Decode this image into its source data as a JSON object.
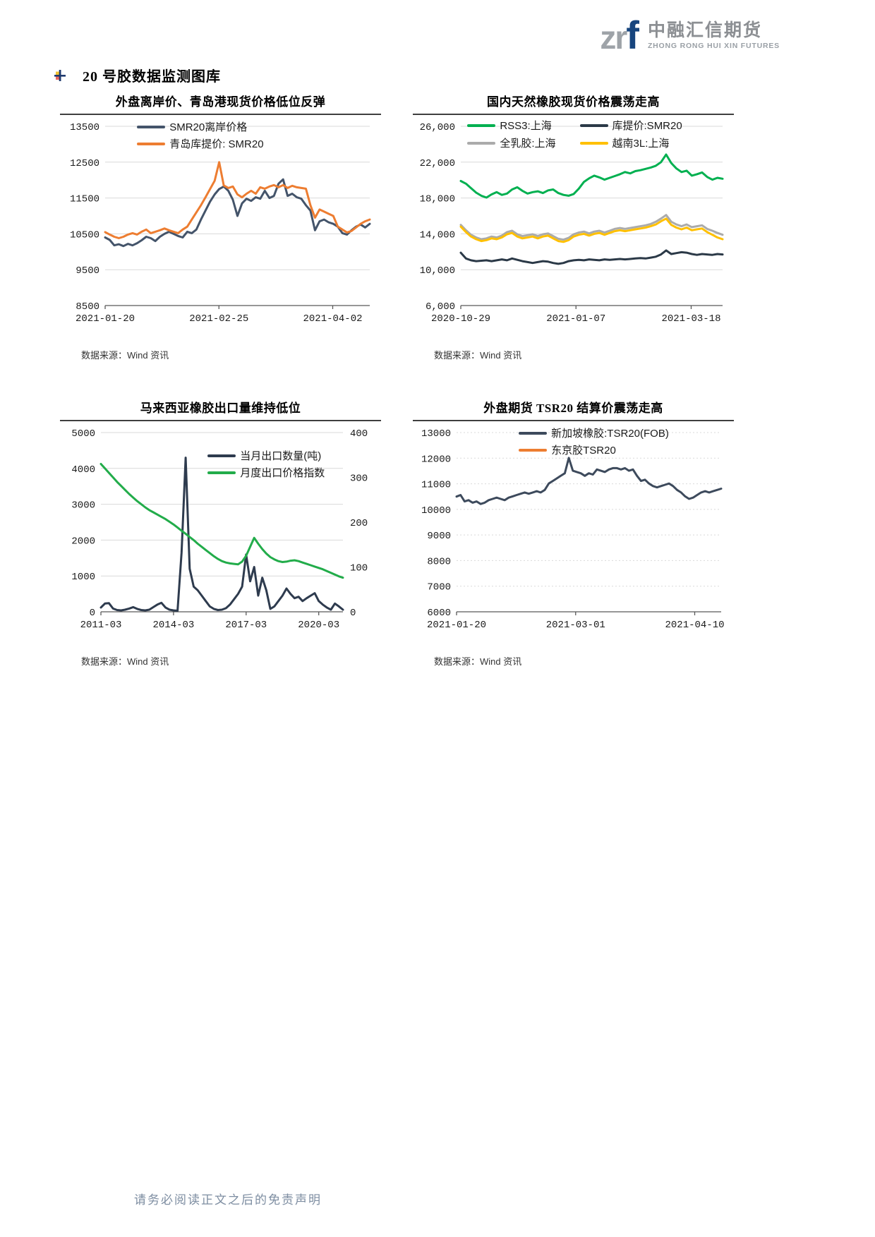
{
  "header": {
    "logo": {
      "zr": "zr",
      "f": "f",
      "cn": "中融汇信期货",
      "en": "ZHONG RONG HUI XIN FUTURES"
    },
    "section_title": "20 号胶数据监测图库"
  },
  "footer": {
    "disclaimer": "请务必阅读正文之后的免责声明"
  },
  "chart_data": [
    {
      "type": "line",
      "title": "外盘离岸价、青岛港现货价格低位反弹",
      "source": "数据来源：Wind 资讯",
      "ylim": [
        8500,
        13500
      ],
      "yticks": [
        8500,
        9500,
        10500,
        11500,
        12500,
        13500
      ],
      "ytick_labels": [
        "8500",
        "9500",
        "10500",
        "11500",
        "12500",
        "13500"
      ],
      "xticks": [
        {
          "label": "2021-01-20",
          "pos": 0.0
        },
        {
          "label": "2021-02-25",
          "pos": 0.43
        },
        {
          "label": "2021-04-02",
          "pos": 0.86
        }
      ],
      "grid": "solid",
      "ml": 64,
      "mr": 16,
      "series": [
        {
          "name": "SMR20离岸价格",
          "color": "#44546a",
          "width": 3,
          "values": [
            10400,
            10330,
            10180,
            10210,
            10160,
            10220,
            10180,
            10240,
            10320,
            10420,
            10380,
            10300,
            10420,
            10500,
            10560,
            10500,
            10440,
            10400,
            10560,
            10520,
            10620,
            10900,
            11150,
            11400,
            11600,
            11750,
            11820,
            11700,
            11450,
            11000,
            11350,
            11480,
            11420,
            11520,
            11480,
            11700,
            11500,
            11560,
            11900,
            12020,
            11560,
            11620,
            11520,
            11480,
            11300,
            11150,
            10600,
            10850,
            10900,
            10820,
            10780,
            10700,
            10520,
            10480,
            10600,
            10700,
            10760,
            10680,
            10780
          ]
        },
        {
          "name": "青岛库提价: SMR20",
          "color": "#ed7d31",
          "width": 3,
          "values": [
            10550,
            10480,
            10420,
            10380,
            10420,
            10480,
            10520,
            10480,
            10560,
            10620,
            10520,
            10560,
            10600,
            10650,
            10600,
            10560,
            10520,
            10620,
            10700,
            10900,
            11100,
            11300,
            11520,
            11750,
            11980,
            12500,
            11850,
            11780,
            11820,
            11600,
            11520,
            11620,
            11700,
            11620,
            11800,
            11760,
            11820,
            11860,
            11800,
            11860,
            11780,
            11840,
            11800,
            11780,
            11760,
            11300,
            10950,
            11180,
            11120,
            11060,
            11000,
            10700,
            10620,
            10540,
            10580,
            10680,
            10780,
            10850,
            10900
          ]
        }
      ]
    },
    {
      "type": "line",
      "title": "国内天然橡胶现货价格震荡走高",
      "source": "数据来源：Wind 资讯",
      "ylim": [
        6000,
        26000
      ],
      "yticks": [
        6000,
        10000,
        14000,
        18000,
        22000,
        26000
      ],
      "ytick_labels": [
        "6,000",
        "10,000",
        "14,000",
        "18,000",
        "22,000",
        "26,000"
      ],
      "xticks": [
        {
          "label": "2020-10-29",
          "pos": 0.0
        },
        {
          "label": "2021-01-07",
          "pos": 0.44
        },
        {
          "label": "2021-03-18",
          "pos": 0.88
        }
      ],
      "grid": "solid",
      "ml": 68,
      "mr": 16,
      "series": [
        {
          "name": "RSS3:上海",
          "color": "#00b050",
          "width": 3,
          "values": [
            19900,
            19600,
            19100,
            18600,
            18250,
            18050,
            18400,
            18650,
            18350,
            18500,
            18950,
            19200,
            18800,
            18500,
            18650,
            18750,
            18550,
            18850,
            18950,
            18550,
            18350,
            18250,
            18450,
            19050,
            19800,
            20200,
            20500,
            20300,
            20050,
            20250,
            20450,
            20650,
            20900,
            20750,
            21000,
            21100,
            21250,
            21400,
            21600,
            22000,
            22850,
            21900,
            21300,
            20900,
            21050,
            20500,
            20650,
            20850,
            20350,
            20050,
            20250,
            20150
          ]
        },
        {
          "name": "库提价:SMR20",
          "color": "#2b3947",
          "width": 3,
          "values": [
            11900,
            11250,
            11050,
            10950,
            11000,
            11050,
            10950,
            11050,
            11150,
            11050,
            11250,
            11100,
            10950,
            10850,
            10750,
            10850,
            10950,
            10900,
            10750,
            10650,
            10750,
            10950,
            11050,
            11100,
            11050,
            11150,
            11100,
            11050,
            11150,
            11100,
            11150,
            11200,
            11150,
            11200,
            11250,
            11300,
            11250,
            11350,
            11450,
            11700,
            12150,
            11750,
            11850,
            11950,
            11900,
            11750,
            11650,
            11750,
            11700,
            11650,
            11750,
            11700
          ]
        },
        {
          "name": "全乳胶:上海",
          "color": "#ababab",
          "width": 3,
          "values": [
            15000,
            14400,
            13900,
            13600,
            13400,
            13500,
            13700,
            13600,
            13800,
            14200,
            14350,
            13950,
            13750,
            13850,
            13950,
            13750,
            13950,
            14050,
            13750,
            13450,
            13350,
            13550,
            13950,
            14150,
            14250,
            14050,
            14250,
            14350,
            14150,
            14350,
            14550,
            14650,
            14550,
            14650,
            14750,
            14850,
            14950,
            15100,
            15350,
            15700,
            16100,
            15350,
            15050,
            14850,
            15050,
            14750,
            14850,
            14950,
            14550,
            14350,
            14100,
            13900
          ]
        },
        {
          "name": "越南3L:上海",
          "color": "#ffc000",
          "width": 3,
          "values": [
            14800,
            14200,
            13700,
            13400,
            13200,
            13300,
            13500,
            13400,
            13600,
            13950,
            14100,
            13700,
            13500,
            13600,
            13700,
            13500,
            13700,
            13800,
            13500,
            13200,
            13100,
            13300,
            13700,
            13900,
            14000,
            13800,
            14000,
            14100,
            13900,
            14100,
            14300,
            14400,
            14300,
            14400,
            14500,
            14600,
            14700,
            14850,
            15050,
            15400,
            15700,
            15000,
            14700,
            14500,
            14700,
            14400,
            14500,
            14600,
            14200,
            13900,
            13600,
            13400
          ]
        }
      ]
    },
    {
      "type": "line",
      "title": "马来西亚橡胶出口量维持低位",
      "source": "数据来源：Wind 资讯",
      "ylim": [
        0,
        5000
      ],
      "yticks": [
        0,
        1000,
        2000,
        3000,
        4000,
        5000
      ],
      "ytick_labels": [
        "0",
        "1000",
        "2000",
        "3000",
        "4000",
        "5000"
      ],
      "y2lim": [
        0,
        400
      ],
      "y2ticks": [
        0,
        100,
        200,
        300,
        400
      ],
      "y2tick_labels": [
        "0",
        "100",
        "200",
        "300",
        "400"
      ],
      "xticks": [
        {
          "label": "2011-03",
          "pos": 0.0
        },
        {
          "label": "2014-03",
          "pos": 0.3
        },
        {
          "label": "2017-03",
          "pos": 0.6
        },
        {
          "label": "2020-03",
          "pos": 0.9
        }
      ],
      "grid": "solid",
      "ml": 58,
      "mr": 54,
      "series": [
        {
          "name": "当月出口数量(吨)",
          "color": "#2e3b4e",
          "width": 3,
          "values": [
            120,
            230,
            240,
            90,
            50,
            40,
            60,
            90,
            130,
            80,
            50,
            40,
            60,
            130,
            200,
            250,
            120,
            60,
            40,
            30,
            1650,
            4300,
            1200,
            700,
            600,
            450,
            300,
            150,
            80,
            50,
            60,
            100,
            200,
            350,
            500,
            700,
            1600,
            850,
            1250,
            450,
            950,
            600,
            80,
            150,
            300,
            450,
            650,
            500,
            380,
            420,
            300,
            380,
            450,
            520,
            300,
            200,
            120,
            60,
            230,
            150,
            60
          ]
        },
        {
          "name": "月度出口价格指数",
          "color": "#22ac4a",
          "width": 3,
          "axis": "right",
          "values": [
            330,
            320,
            310,
            300,
            290,
            281,
            272,
            263,
            255,
            247,
            240,
            233,
            227,
            222,
            217,
            212,
            207,
            201,
            195,
            188,
            181,
            174,
            167,
            160,
            152,
            145,
            138,
            131,
            124,
            118,
            113,
            110,
            108,
            107,
            106,
            112,
            125,
            145,
            165,
            152,
            140,
            130,
            122,
            117,
            113,
            111,
            112,
            114,
            115,
            113,
            110,
            107,
            104,
            101,
            98,
            95,
            91,
            87,
            83,
            79,
            76
          ]
        }
      ]
    },
    {
      "type": "line",
      "title": "外盘期货 TSR20 结算价震荡走高",
      "source": "数据来源：Wind 资讯",
      "ylim": [
        6000,
        13000
      ],
      "yticks": [
        6000,
        7000,
        8000,
        9000,
        10000,
        11000,
        12000,
        13000
      ],
      "ytick_labels": [
        "6000",
        "7000",
        "8000",
        "9000",
        "10000",
        "11000",
        "12000",
        "13000"
      ],
      "xticks": [
        {
          "label": "2021-01-20",
          "pos": 0.0
        },
        {
          "label": "2021-03-01",
          "pos": 0.45
        },
        {
          "label": "2021-04-10",
          "pos": 0.9
        }
      ],
      "grid": "dotted",
      "ml": 62,
      "mr": 18,
      "series": [
        {
          "name": "新加坡橡胶:TSR20(FOB)",
          "color": "#3d4a5c",
          "width": 3,
          "values": [
            10500,
            10560,
            10310,
            10360,
            10260,
            10310,
            10210,
            10260,
            10360,
            10410,
            10460,
            10410,
            10360,
            10460,
            10510,
            10560,
            10610,
            10660,
            10610,
            10660,
            10710,
            10660,
            10760,
            11010,
            11110,
            11210,
            11310,
            11410,
            12010,
            11510,
            11460,
            11410,
            11310,
            11410,
            11360,
            11560,
            11510,
            11460,
            11560,
            11610,
            11610,
            11560,
            11610,
            11510,
            11560,
            11310,
            11110,
            11160,
            11010,
            10910,
            10860,
            10910,
            10960,
            11010,
            10910,
            10760,
            10660,
            10510,
            10410,
            10460,
            10560,
            10660,
            10710,
            10660,
            10710,
            10760,
            10810
          ]
        },
        {
          "name": "东京胶TSR20",
          "color": "#ed7d31",
          "width": 3,
          "values": []
        }
      ]
    }
  ]
}
